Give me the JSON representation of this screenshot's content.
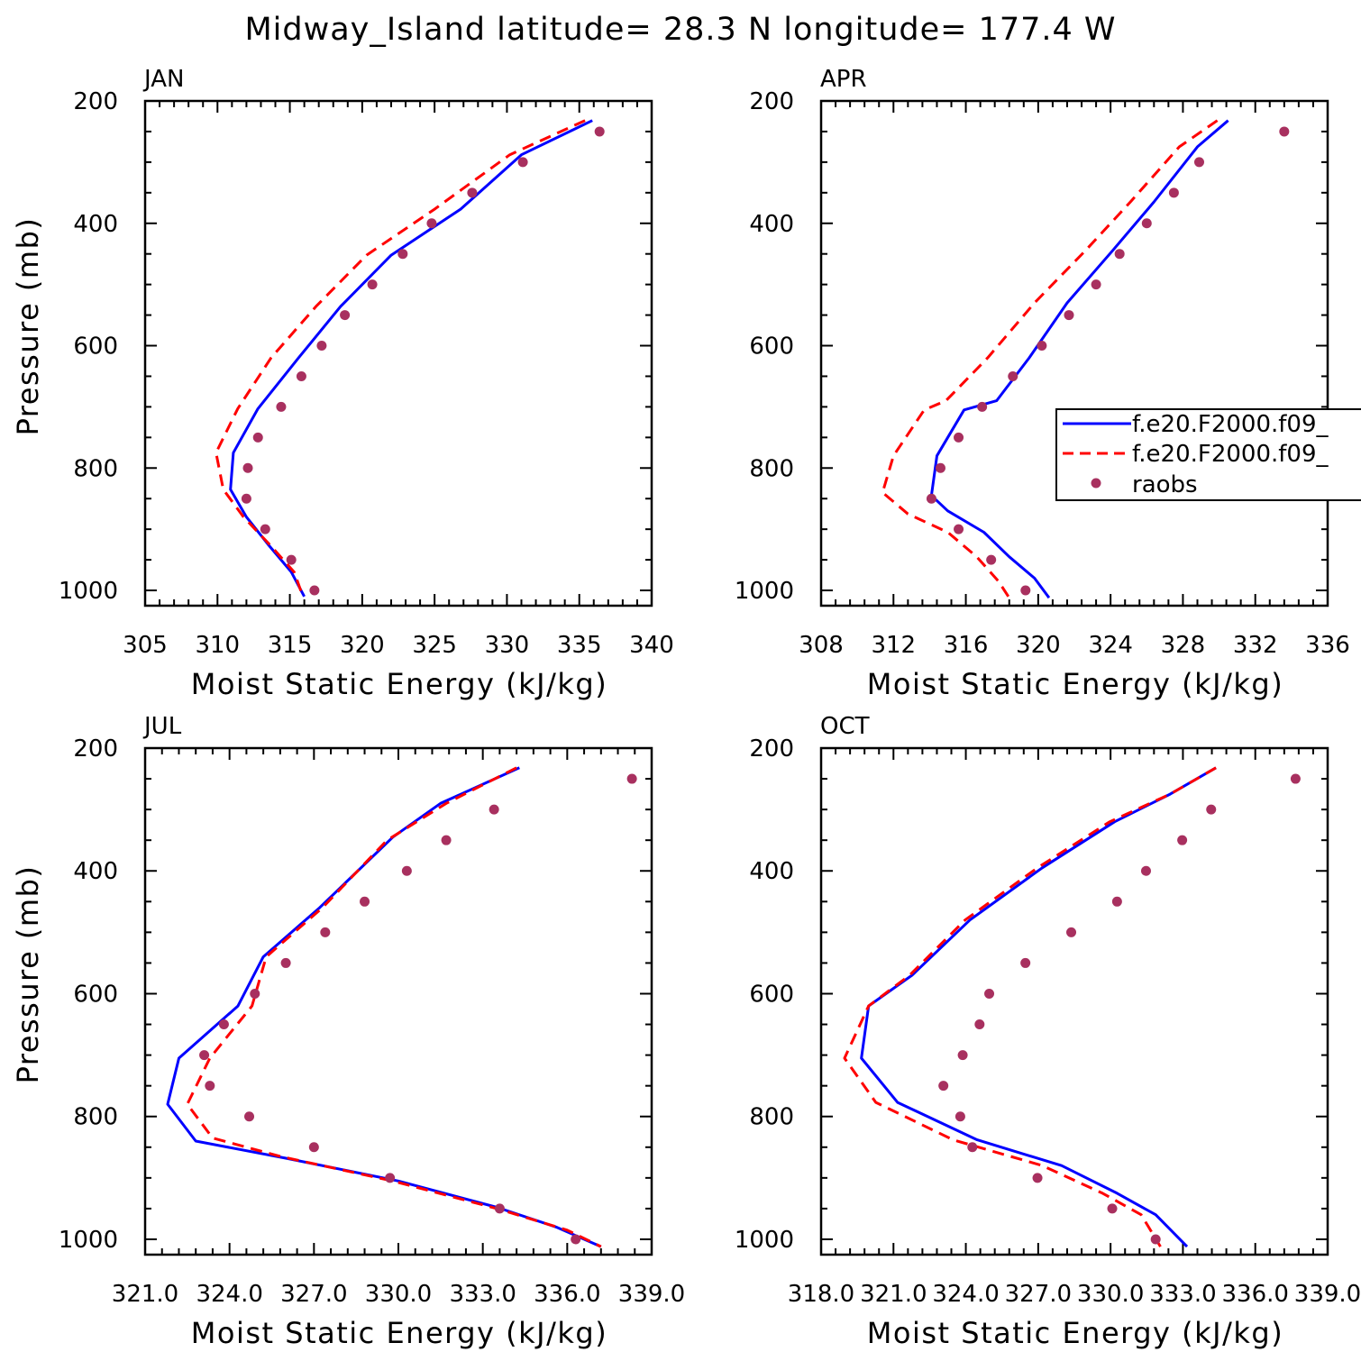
{
  "page_title": "Midway_Island  latitude= 28.3 N longitude= 177.4 W",
  "colors": {
    "model_a": "#0000ff",
    "model_b": "#ff0000",
    "raobs": "#a8305f",
    "axis": "#000000"
  },
  "legend": {
    "entries": [
      {
        "label": "f.e20.F2000.f09_",
        "style": "solid",
        "color": "#0000ff"
      },
      {
        "label": "f.e20.F2000.f09_",
        "style": "dashed",
        "color": "#ff0000"
      },
      {
        "label": "raobs",
        "style": "dot",
        "color": "#a8305f"
      }
    ]
  },
  "chart_data": [
    {
      "type": "line",
      "title": "JAN",
      "xlabel": "Moist Static Energy (kJ/kg)",
      "ylabel": "Pressure (mb)",
      "xlim": [
        305,
        340
      ],
      "ylim": [
        1025,
        200
      ],
      "xticks": [
        305,
        310,
        315,
        320,
        325,
        330,
        335,
        340
      ],
      "xtick_labels": [
        "305",
        "310",
        "315",
        "320",
        "325",
        "330",
        "335",
        "340"
      ],
      "yticks": [
        200,
        400,
        600,
        800,
        1000
      ],
      "ytick_labels": [
        "200",
        "400",
        "600",
        "800",
        "1000"
      ],
      "series": [
        {
          "name": "f.e20.F2000.f09_ (solid)",
          "x": [
            335.9,
            331.0,
            326.8,
            322.0,
            318.5,
            315.6,
            312.8,
            311.1,
            310.9,
            312.0,
            313.5,
            315.1,
            316.0
          ],
          "y": [
            232,
            288,
            377,
            452,
            536,
            620,
            703,
            775,
            835,
            880,
            925,
            970,
            1010
          ]
        },
        {
          "name": "f.e20.F2000.f09_ (dashed)",
          "x": [
            335.4,
            330.2,
            325.0,
            320.3,
            316.8,
            313.7,
            311.4,
            309.9,
            310.4,
            311.8,
            313.6,
            315.3,
            315.9
          ],
          "y": [
            232,
            288,
            377,
            452,
            536,
            620,
            703,
            775,
            835,
            880,
            925,
            970,
            1010
          ]
        },
        {
          "name": "raobs",
          "x": [
            336.4,
            331.1,
            327.6,
            324.8,
            322.8,
            320.7,
            318.8,
            317.2,
            315.8,
            314.4,
            312.8,
            312.1,
            312.0,
            313.3,
            315.1,
            316.7
          ],
          "y": [
            250,
            300,
            350,
            400,
            450,
            500,
            550,
            600,
            650,
            700,
            750,
            800,
            850,
            900,
            950,
            1000
          ]
        }
      ]
    },
    {
      "type": "line",
      "title": "APR",
      "xlabel": "Moist Static Energy (kJ/kg)",
      "ylabel": "Pressure (mb)",
      "xlim": [
        308,
        336
      ],
      "ylim": [
        1025,
        200
      ],
      "xticks": [
        308,
        312,
        316,
        320,
        324,
        328,
        332,
        336
      ],
      "xtick_labels": [
        "308",
        "312",
        "316",
        "320",
        "324",
        "328",
        "332",
        "336"
      ],
      "yticks": [
        200,
        400,
        600,
        800,
        1000
      ],
      "yticks_labels_note": "",
      "ytick_labels": [
        "200",
        "400",
        "600",
        "800",
        "1000"
      ],
      "series": [
        {
          "name": "f.e20.F2000.f09_ (solid)",
          "x": [
            330.5,
            328.8,
            326.4,
            324.1,
            321.6,
            319.5,
            317.7,
            315.9,
            314.4,
            314.1,
            315.0,
            317.0,
            318.4,
            319.8,
            320.6
          ],
          "y": [
            232,
            275,
            365,
            445,
            530,
            620,
            690,
            705,
            780,
            845,
            870,
            905,
            945,
            980,
            1012
          ]
        },
        {
          "name": "f.e20.F2000.f09_ (dashed)",
          "x": [
            329.9,
            327.8,
            325.1,
            322.6,
            319.8,
            317.2,
            314.9,
            313.7,
            312.0,
            311.4,
            312.8,
            315.0,
            316.6,
            317.8,
            318.4
          ],
          "y": [
            232,
            275,
            365,
            445,
            530,
            620,
            690,
            705,
            780,
            840,
            875,
            905,
            945,
            985,
            1012
          ]
        },
        {
          "name": "raobs",
          "x": [
            333.6,
            328.9,
            327.5,
            326.0,
            324.5,
            323.2,
            321.7,
            320.2,
            318.6,
            316.9,
            315.6,
            314.6,
            314.1,
            315.6,
            317.4,
            319.3
          ],
          "y": [
            250,
            300,
            350,
            400,
            450,
            500,
            550,
            600,
            650,
            700,
            750,
            800,
            850,
            900,
            950,
            1000
          ]
        }
      ]
    },
    {
      "type": "line",
      "title": "JUL",
      "xlabel": "Moist Static Energy (kJ/kg)",
      "ylabel": "Pressure (mb)",
      "xlim": [
        321,
        339
      ],
      "ylim": [
        1025,
        200
      ],
      "xticks": [
        321,
        324,
        327,
        330,
        333,
        336,
        339
      ],
      "xtick_labels": [
        "321.0",
        "324.0",
        "327.0",
        "330.0",
        "333.0",
        "336.0",
        "339.0"
      ],
      "yticks": [
        200,
        400,
        600,
        800,
        1000
      ],
      "ytick_labels": [
        "200",
        "400",
        "600",
        "800",
        "1000"
      ],
      "series": [
        {
          "name": "f.e20.F2000.f09_ (solid)",
          "x": [
            334.3,
            331.5,
            329.8,
            327.2,
            325.2,
            324.3,
            322.2,
            321.8,
            322.8,
            326.0,
            330.0,
            333.5,
            335.6,
            337.2
          ],
          "y": [
            232,
            290,
            345,
            460,
            540,
            620,
            705,
            780,
            840,
            868,
            905,
            948,
            980,
            1012
          ]
        },
        {
          "name": "f.e20.F2000.f09_ (dashed)",
          "x": [
            334.2,
            331.7,
            329.6,
            327.3,
            325.3,
            324.8,
            323.3,
            322.5,
            323.4,
            325.8,
            329.8,
            333.5,
            336.0,
            337.2
          ],
          "y": [
            232,
            290,
            350,
            460,
            540,
            620,
            705,
            780,
            835,
            865,
            905,
            950,
            985,
            1012
          ]
        },
        {
          "name": "raobs",
          "x": [
            338.3,
            333.4,
            331.7,
            330.3,
            328.8,
            327.4,
            326.0,
            324.9,
            323.8,
            323.1,
            323.3,
            324.7,
            327.0,
            329.7,
            333.6,
            336.3
          ],
          "y": [
            250,
            300,
            350,
            400,
            450,
            500,
            550,
            600,
            650,
            700,
            750,
            800,
            850,
            900,
            950,
            1000
          ]
        }
      ]
    },
    {
      "type": "line",
      "title": "OCT",
      "xlabel": "Moist Static Energy (kJ/kg)",
      "ylabel": "Pressure (mb)",
      "xlim": [
        318.03,
        339.03
      ],
      "ylim": [
        1025,
        200
      ],
      "xticks": [
        318.03,
        321.03,
        324.03,
        327.03,
        330.03,
        333.03,
        336.03,
        339.03
      ],
      "xtick_labels": [
        "318.0",
        "321.0",
        "324.0",
        "327.0",
        "330.0",
        "333.0",
        "336.0",
        "339.0"
      ],
      "yticks": [
        200,
        400,
        600,
        800,
        1000
      ],
      "ytick_labels": [
        "200",
        "400",
        "600",
        "800",
        "1000"
      ],
      "series": [
        {
          "name": "f.e20.F2000.f09_ (solid)",
          "x": [
            334.4,
            332.5,
            330.2,
            327.2,
            324.2,
            321.8,
            320.0,
            319.7,
            321.2,
            324.5,
            328.0,
            330.3,
            331.9,
            333.2
          ],
          "y": [
            232,
            275,
            320,
            395,
            480,
            570,
            620,
            705,
            777,
            838,
            880,
            925,
            960,
            1012
          ]
        },
        {
          "name": "f.e20.F2000.f09_ (dashed)",
          "x": [
            334.4,
            332.5,
            330.0,
            327.0,
            324.0,
            321.7,
            320.0,
            319.0,
            320.3,
            323.5,
            327.2,
            329.7,
            331.3,
            332.1
          ],
          "y": [
            232,
            275,
            320,
            395,
            480,
            570,
            620,
            705,
            777,
            838,
            880,
            925,
            960,
            1012
          ]
        },
        {
          "name": "raobs",
          "x": [
            337.7,
            334.2,
            333.0,
            331.5,
            330.3,
            328.4,
            326.5,
            325.0,
            324.6,
            323.9,
            323.1,
            323.8,
            324.3,
            327.0,
            330.1,
            331.9
          ],
          "y": [
            250,
            300,
            350,
            400,
            450,
            500,
            550,
            600,
            650,
            700,
            750,
            800,
            850,
            900,
            950,
            1000
          ]
        }
      ]
    }
  ]
}
